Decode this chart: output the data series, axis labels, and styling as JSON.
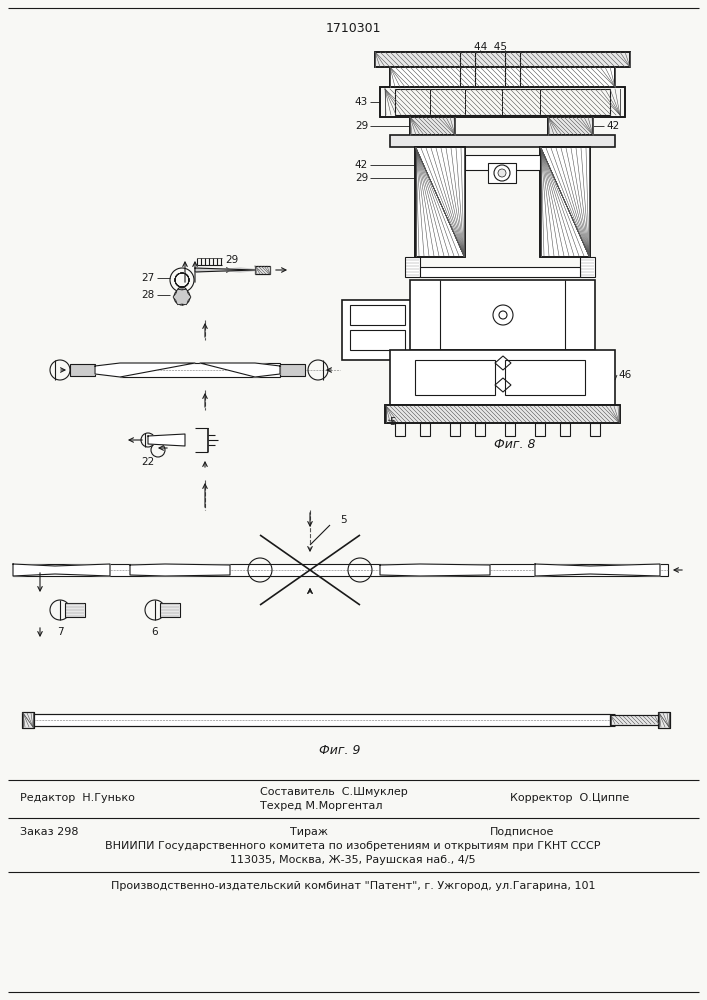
{
  "patent_number": "1710301",
  "bg_color": "#f8f8f5",
  "line_color": "#1a1a1a",
  "fig9_label": "Фиг. 9",
  "fig8_label": "Фиг. 8",
  "footer_line1_col1": "Редактор  Н.Гунько",
  "footer_line1_col3": "Корректор  О.Циппе",
  "footer_line2_col1": "Заказ 298",
  "footer_line2_col2": "Тираж",
  "footer_line2_col3": "Подписное",
  "footer_line3": "ВНИИПИ Государственного комитета по изобретениям и открытиям при ГКНТ СССР",
  "footer_line4": "113035, Москва, Ж-35, Раушская наб., 4/5",
  "footer_line5": "Производственно-издательский комбинат \"Патент\", г. Ужгород, ул.Гагарина, 101",
  "hatch_color": "#555555",
  "gray_fill": "#cccccc",
  "light_gray": "#e8e8e8"
}
